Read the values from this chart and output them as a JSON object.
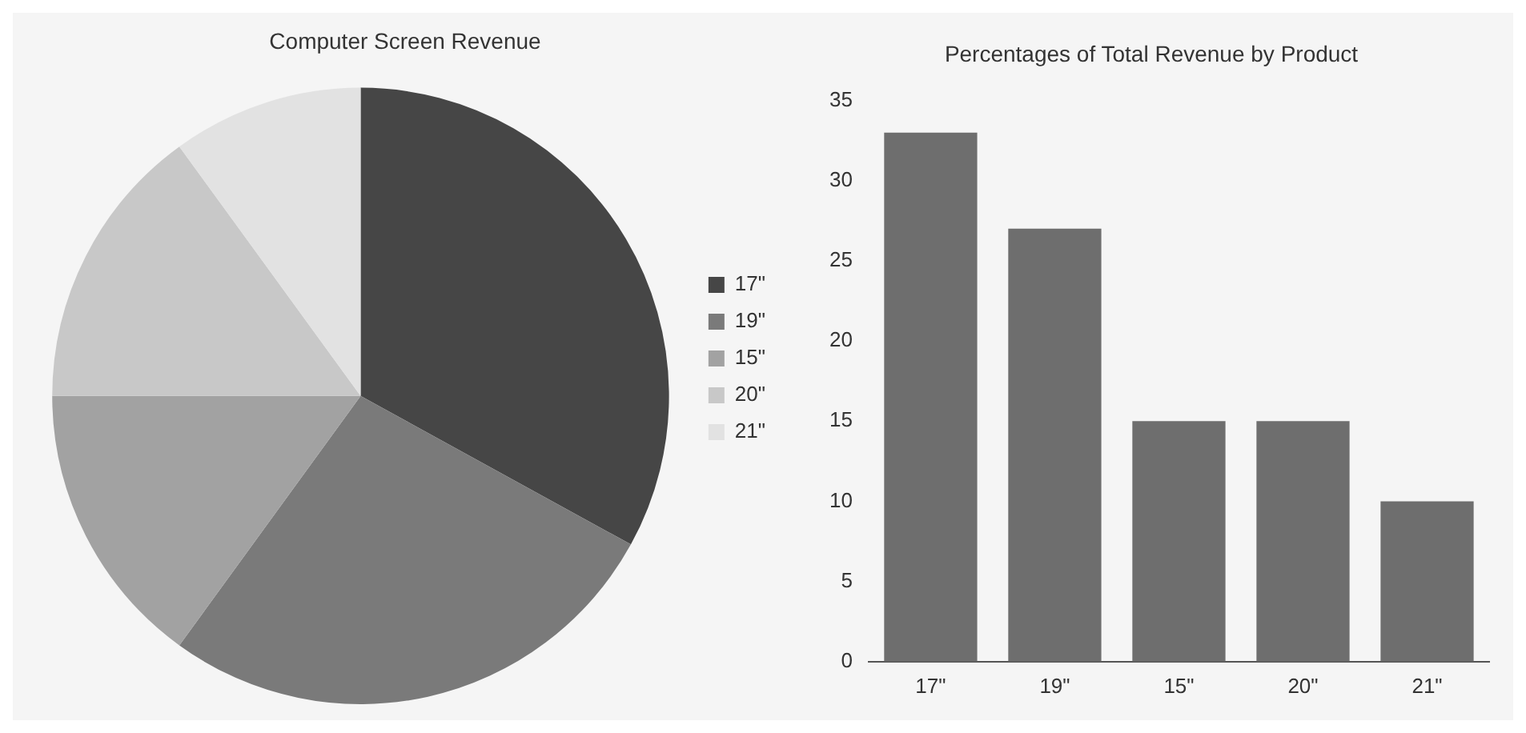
{
  "chart_data": [
    {
      "type": "pie",
      "title": "Computer Screen Revenue",
      "categories": [
        "17\"",
        "19\"",
        "15\"",
        "20\"",
        "21\""
      ],
      "values": [
        33,
        27,
        15,
        15,
        10
      ],
      "colors": [
        "#464646",
        "#7a7a7a",
        "#a2a2a2",
        "#c8c8c8",
        "#e2e2e2"
      ],
      "legend": "right"
    },
    {
      "type": "bar",
      "title": "Percentages of Total Revenue by Product",
      "categories": [
        "17\"",
        "19\"",
        "15\"",
        "20\"",
        "21\""
      ],
      "values": [
        33,
        27,
        15,
        15,
        10
      ],
      "color": "#6e6e6e",
      "ylim": [
        0,
        35
      ],
      "yticks": [
        0,
        5,
        10,
        15,
        20,
        25,
        30,
        35
      ],
      "grid": false
    }
  ]
}
